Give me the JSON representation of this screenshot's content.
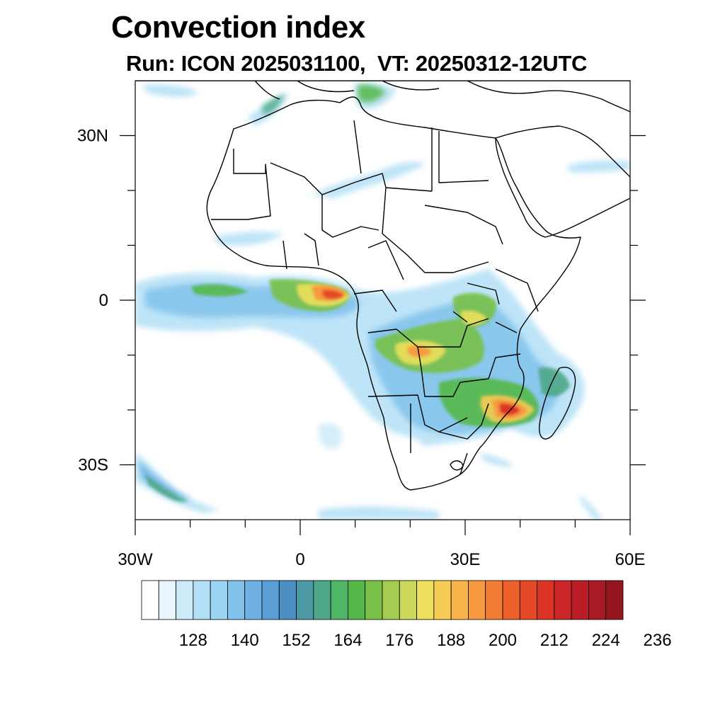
{
  "title": "Convection index",
  "subtitle": "Run: ICON 2025031100,  VT: 20250312-12UTC",
  "map": {
    "lon_range": [
      -30,
      60
    ],
    "lat_range": [
      -40,
      40
    ],
    "lon_ticks": [
      {
        "value": -30,
        "label": "30W"
      },
      {
        "value": 0,
        "label": "0"
      },
      {
        "value": 30,
        "label": "30E"
      },
      {
        "value": 60,
        "label": "60E"
      }
    ],
    "lat_ticks": [
      {
        "value": 30,
        "label": "30N"
      },
      {
        "value": 0,
        "label": "0"
      },
      {
        "value": -30,
        "label": "30S"
      }
    ],
    "minor_lon_ticks": [
      -20,
      -10,
      10,
      20,
      40,
      50
    ],
    "minor_lat_ticks": [
      20,
      10,
      -10,
      -20
    ]
  },
  "colorbar": {
    "colors": [
      "#ffffff",
      "#e8f5fd",
      "#cdeaf9",
      "#b3e0f6",
      "#99d5f3",
      "#82c3ec",
      "#6eb1e2",
      "#5b9fd6",
      "#4b8fc4",
      "#4c9aa6",
      "#4ea888",
      "#4fb668",
      "#54b848",
      "#78c04a",
      "#a4cc50",
      "#ccd85a",
      "#eee05c",
      "#f7cc55",
      "#f8b44a",
      "#f79a3f",
      "#f27d34",
      "#ec602c",
      "#e44a28",
      "#db3427",
      "#cc2529",
      "#bb1d27",
      "#a81a24",
      "#941720"
    ],
    "tick_labels": [
      "128",
      "140",
      "152",
      "164",
      "176",
      "188",
      "200",
      "212",
      "224",
      "236"
    ]
  },
  "field_colors": {
    "light_blue": "#b3e0f6",
    "mid_blue": "#6eb1e2",
    "teal": "#4ea888",
    "green": "#54b848",
    "yellow": "#eee05c",
    "orange": "#f79a3f",
    "red": "#e44a28"
  }
}
